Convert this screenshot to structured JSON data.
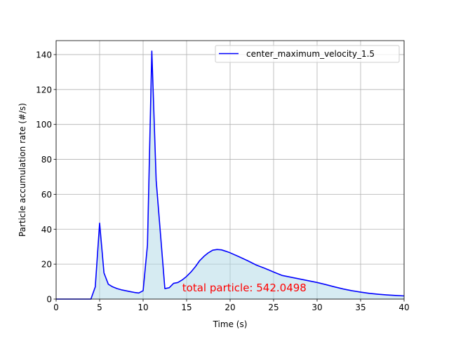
{
  "chart_data": {
    "type": "area",
    "title": "",
    "xlabel": "Time (s)",
    "ylabel": "Particle accumulation rate (#/s)",
    "xlim": [
      0,
      40
    ],
    "ylim": [
      0,
      148
    ],
    "xticks": [
      0,
      5,
      10,
      15,
      20,
      25,
      30,
      35,
      40
    ],
    "yticks": [
      0,
      20,
      40,
      60,
      80,
      100,
      120,
      140
    ],
    "grid": true,
    "legend_position": "top-right",
    "annotation": {
      "text": "total particle: 542.0498",
      "x": 14.5,
      "y": 4.5,
      "color": "#ff0000"
    },
    "series": [
      {
        "name": "center_maximum_velocity_1.5",
        "color": "#0000ff",
        "fill_color": "#add8e6",
        "x": [
          0,
          1,
          2,
          3,
          4,
          4.5,
          5,
          5.5,
          6,
          6.5,
          7,
          7.5,
          8,
          8.5,
          9,
          9.5,
          10,
          10.5,
          11,
          11.5,
          12,
          12.5,
          13,
          13.5,
          14,
          14.5,
          15,
          15.5,
          16,
          16.5,
          17,
          17.5,
          18,
          18.5,
          19,
          19.5,
          20,
          21,
          22,
          23,
          24,
          25,
          26,
          27,
          28,
          29,
          30,
          31,
          32,
          33,
          34,
          35,
          36,
          37,
          38,
          39,
          40
        ],
        "y": [
          0,
          0,
          0,
          0,
          0,
          7,
          43.5,
          15,
          8.5,
          7,
          6,
          5.3,
          4.8,
          4.3,
          3.8,
          3.5,
          4.8,
          31,
          142,
          68,
          37,
          6,
          6.5,
          9,
          9.5,
          11,
          13,
          15.5,
          18.5,
          22,
          24.5,
          26.5,
          28,
          28.4,
          28.2,
          27.4,
          26.5,
          24.3,
          22,
          19.5,
          17.6,
          15.5,
          13.5,
          12.5,
          11.5,
          10.5,
          9.5,
          8.3,
          7,
          5.8,
          4.8,
          4,
          3.3,
          2.8,
          2.4,
          2.1,
          1.8
        ]
      }
    ]
  }
}
